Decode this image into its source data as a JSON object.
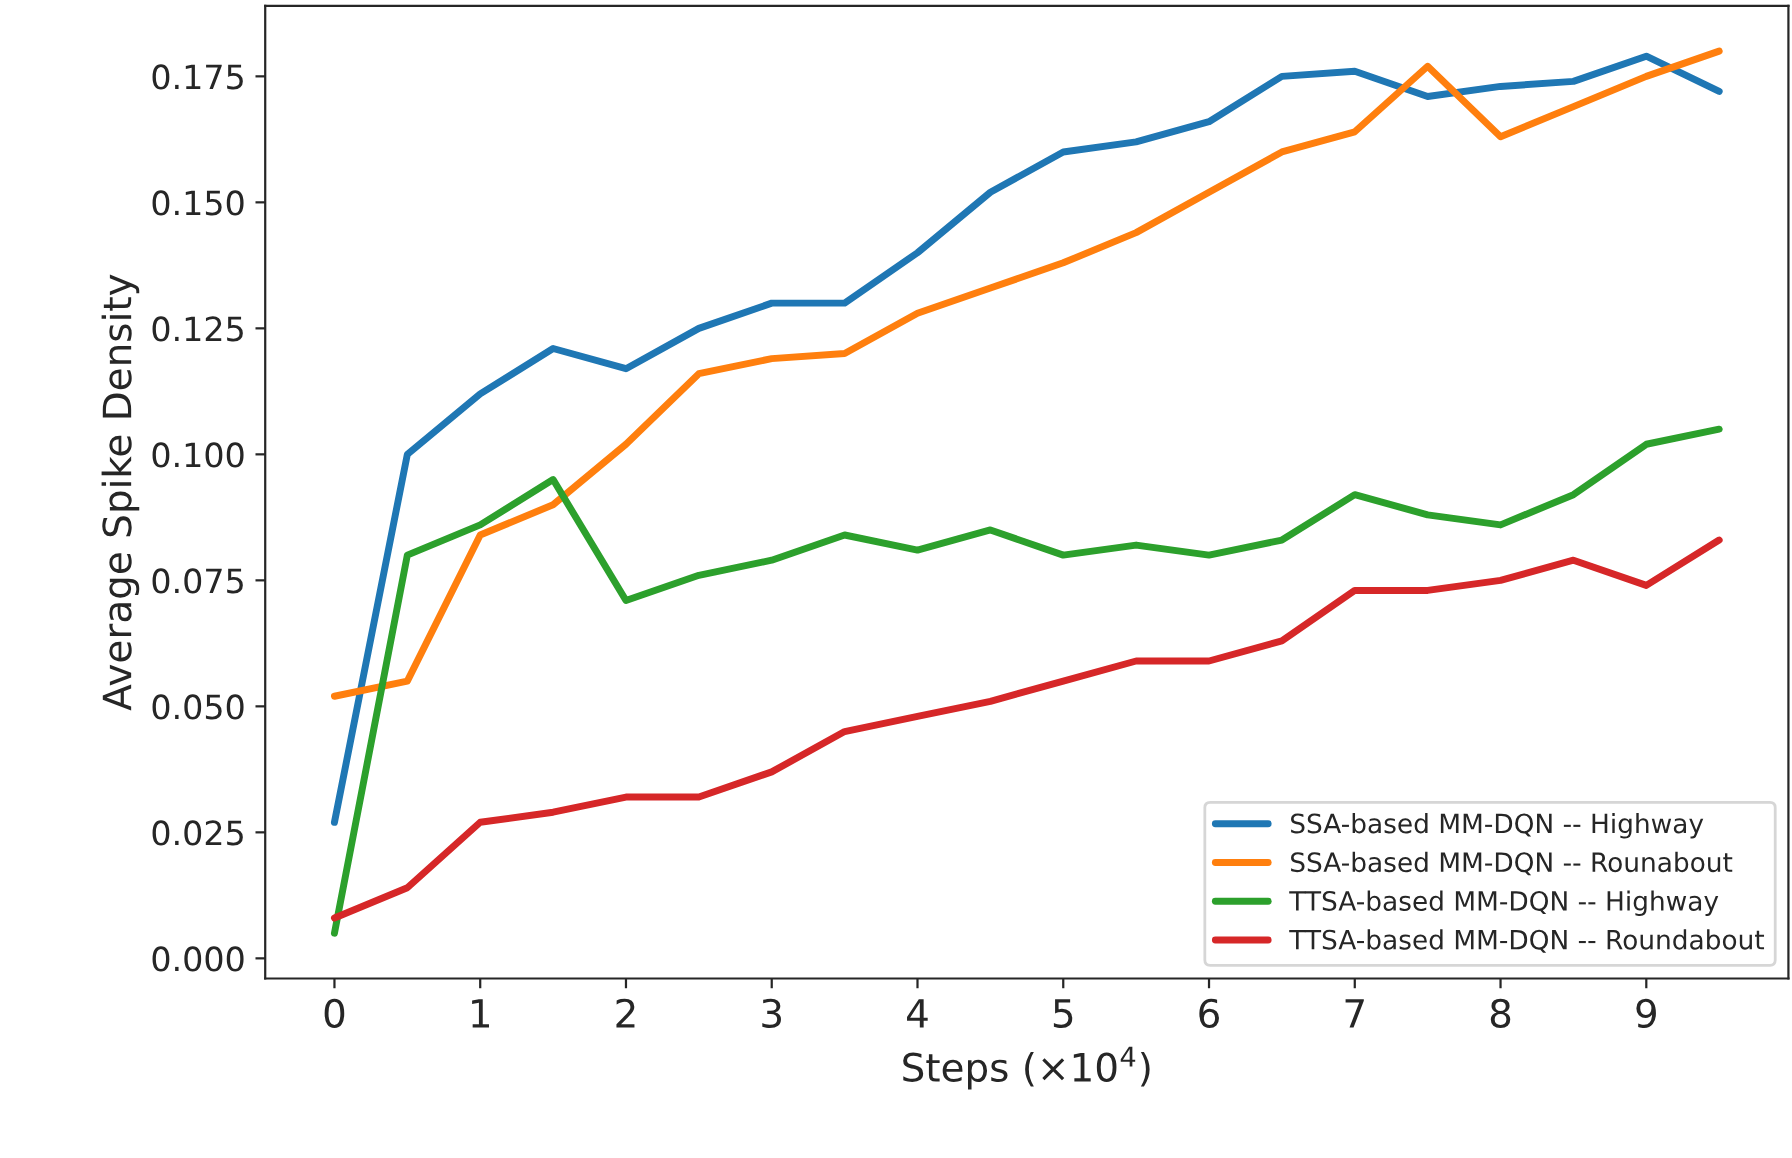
{
  "chart_data": {
    "type": "line",
    "xlabel": "Steps (×10$^{4}$)",
    "ylabel": "Average Spike Density",
    "x": [
      0,
      0.5,
      1,
      1.5,
      2,
      2.5,
      3,
      3.5,
      4,
      4.5,
      5,
      5.5,
      6,
      6.5,
      7,
      7.5,
      8,
      8.5,
      9,
      9.5
    ],
    "series": [
      {
        "name": "SSA-based MM-DQN -- Highway",
        "color": "#1f77b4",
        "values": [
          0.027,
          0.1,
          0.112,
          0.121,
          0.117,
          0.125,
          0.13,
          0.13,
          0.14,
          0.152,
          0.16,
          0.162,
          0.166,
          0.175,
          0.176,
          0.171,
          0.173,
          0.174,
          0.179,
          0.172
        ]
      },
      {
        "name": "SSA-based MM-DQN -- Rounabout",
        "color": "#ff7f0e",
        "values": [
          0.052,
          0.055,
          0.084,
          0.09,
          0.102,
          0.116,
          0.119,
          0.12,
          0.128,
          0.133,
          0.138,
          0.144,
          0.152,
          0.16,
          0.164,
          0.177,
          0.163,
          0.169,
          0.175,
          0.18
        ]
      },
      {
        "name": "TTSA-based MM-DQN -- Highway",
        "color": "#2ca02c",
        "values": [
          0.005,
          0.08,
          0.086,
          0.095,
          0.071,
          0.076,
          0.079,
          0.084,
          0.081,
          0.085,
          0.08,
          0.082,
          0.08,
          0.083,
          0.092,
          0.088,
          0.086,
          0.092,
          0.102,
          0.105
        ]
      },
      {
        "name": "TTSA-based MM-DQN -- Roundabout",
        "color": "#d62728",
        "values": [
          0.008,
          0.014,
          0.027,
          0.029,
          0.032,
          0.032,
          0.037,
          0.045,
          0.048,
          0.051,
          0.055,
          0.059,
          0.059,
          0.063,
          0.073,
          0.073,
          0.075,
          0.079,
          0.074,
          0.083
        ]
      }
    ],
    "xlim": [
      -0.475,
      9.975
    ],
    "xticks": [
      0,
      1,
      2,
      3,
      4,
      5,
      6,
      7,
      8,
      9
    ],
    "ylim": [
      -0.004,
      0.189
    ],
    "yticks": [
      {
        "value": 0,
        "label": "0.000"
      },
      {
        "value": 0.025,
        "label": "0.025"
      },
      {
        "value": 0.05,
        "label": "0.050"
      },
      {
        "value": 0.075,
        "label": "0.075"
      },
      {
        "value": 0.1,
        "label": "0.100"
      },
      {
        "value": 0.125,
        "label": "0.125"
      },
      {
        "value": 0.15,
        "label": "0.150"
      },
      {
        "value": 0.175,
        "label": "0.175"
      }
    ],
    "legend": "bottom right",
    "grid": false
  }
}
